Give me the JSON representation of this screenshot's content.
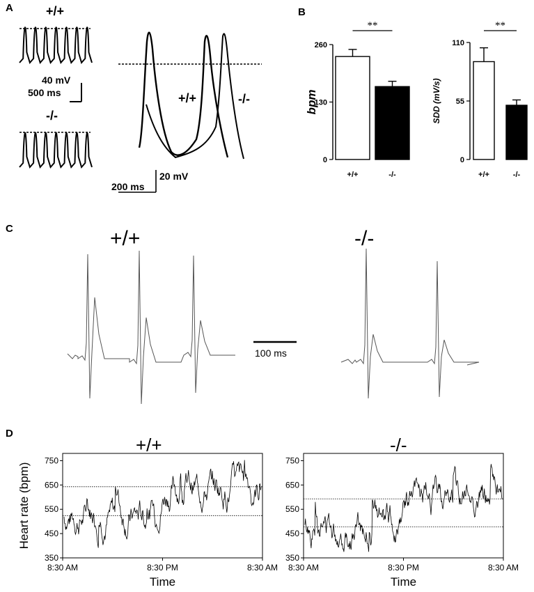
{
  "panels": {
    "A": {
      "letter": "A",
      "small_top_label": "+/+",
      "small_bottom_label": "-/-",
      "scale_voltage": "40 mV",
      "scale_time": "500 ms",
      "overlay_label_wt": "+/+",
      "overlay_label_ko": "-/-",
      "overlay_scale_time": "200 ms",
      "overlay_scale_voltage": "20 mV"
    },
    "B": {
      "letter": "B"
    },
    "C": {
      "letter": "C",
      "label_wt": "+/+",
      "label_ko": "-/-",
      "scale_time": "100 ms"
    },
    "D": {
      "letter": "D",
      "label_wt": "+/+",
      "label_ko": "-/-"
    }
  },
  "chart_data": [
    {
      "id": "B-bpm",
      "type": "bar",
      "categories": [
        "+/+",
        "-/-"
      ],
      "values": [
        233,
        165
      ],
      "errors": [
        16,
        12
      ],
      "fill_colors": [
        "#ffffff",
        "#000000"
      ],
      "ylabel": "bpm",
      "ylim": [
        0,
        260
      ],
      "yticks": [
        "0",
        "130",
        "260"
      ],
      "significance": "**"
    },
    {
      "id": "B-sdd",
      "type": "bar",
      "categories": [
        "+/+",
        "-/-"
      ],
      "values": [
        92,
        51
      ],
      "errors": [
        13,
        5
      ],
      "fill_colors": [
        "#ffffff",
        "#000000"
      ],
      "ylabel": "SDD (mV/s)",
      "ylim": [
        0,
        110
      ],
      "yticks": [
        "0",
        "55",
        "110"
      ],
      "significance": "**"
    },
    {
      "id": "D-wt",
      "type": "line",
      "title": "+/+",
      "xlabel": "Time",
      "ylabel": "Heart rate (bpm)",
      "ylim": [
        350,
        780
      ],
      "yticks": [
        "350",
        "450",
        "550",
        "650",
        "750"
      ],
      "xticks": [
        "8:30 AM",
        "8:30 PM",
        "8:30 AM"
      ],
      "reference_lines": [
        643,
        524
      ],
      "day_night_means": [
        520,
        640
      ]
    },
    {
      "id": "D-ko",
      "type": "line",
      "title": "-/-",
      "xlabel": "Time",
      "ylabel": "Heart rate (bpm)",
      "ylim": [
        350,
        780
      ],
      "yticks": [
        "350",
        "450",
        "550",
        "650",
        "750"
      ],
      "xticks": [
        "8:30 AM",
        "8:30 PM",
        "8:30 AM"
      ],
      "reference_lines": [
        593,
        478
      ],
      "day_night_means": [
        470,
        600
      ]
    }
  ]
}
